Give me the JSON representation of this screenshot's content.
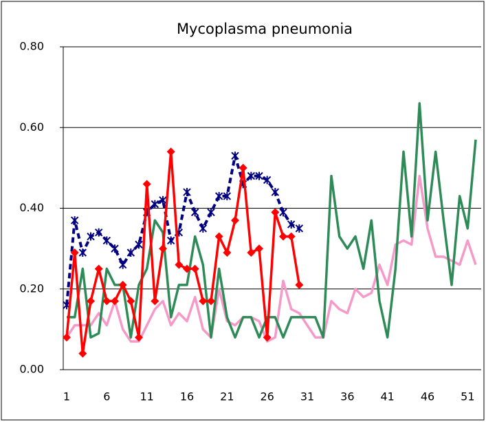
{
  "chart_data": {
    "type": "line",
    "title": "Mycoplasma pneumonia",
    "categories": [
      "1",
      null,
      null,
      null,
      null,
      "6",
      null,
      null,
      null,
      null,
      "11",
      null,
      null,
      null,
      null,
      "16",
      null,
      null,
      null,
      null,
      "21",
      null,
      null,
      null,
      null,
      "26",
      null,
      null,
      null,
      null,
      "31",
      null,
      null,
      null,
      null,
      "36",
      null,
      null,
      null,
      null,
      "41",
      null,
      null,
      null,
      null,
      "46",
      null,
      null,
      null,
      null,
      "51",
      null
    ],
    "series": [
      {
        "color": "#000080",
        "dashed": true,
        "marker": "asterisk",
        "values": [
          0.16,
          0.37,
          0.29,
          0.33,
          0.34,
          0.32,
          0.3,
          0.26,
          0.29,
          0.31,
          0.39,
          0.41,
          0.42,
          0.32,
          0.34,
          0.44,
          0.39,
          0.35,
          0.39,
          0.43,
          0.43,
          0.53,
          0.46,
          0.48,
          0.48,
          0.47,
          0.44,
          0.39,
          0.36,
          0.35,
          null,
          null,
          null,
          null,
          null,
          null,
          null,
          null,
          null,
          null,
          null,
          null,
          null,
          null,
          null,
          null,
          null,
          null,
          null,
          null,
          null,
          null
        ]
      },
      {
        "color": "#ff0000",
        "marker": "diamond",
        "values": [
          0.08,
          0.29,
          0.04,
          0.17,
          0.25,
          0.17,
          0.17,
          0.21,
          0.17,
          0.08,
          0.46,
          0.17,
          0.3,
          0.54,
          0.26,
          0.25,
          0.25,
          0.17,
          0.17,
          0.33,
          0.29,
          0.37,
          0.5,
          0.29,
          0.3,
          0.08,
          0.39,
          0.33,
          0.33,
          0.21,
          null,
          null,
          null,
          null,
          null,
          null,
          null,
          null,
          null,
          null,
          null,
          null,
          null,
          null,
          null,
          null,
          null,
          null,
          null,
          null,
          null,
          null
        ]
      },
      {
        "color": "#2e8b57",
        "values": [
          0.13,
          0.13,
          0.25,
          0.08,
          0.09,
          0.25,
          0.21,
          0.21,
          0.08,
          0.21,
          0.25,
          0.37,
          0.34,
          0.13,
          0.21,
          0.21,
          0.33,
          0.26,
          0.08,
          0.25,
          0.13,
          0.08,
          0.13,
          0.13,
          0.08,
          0.13,
          0.13,
          0.08,
          0.13,
          0.13,
          0.13,
          0.13,
          0.08,
          0.48,
          0.33,
          0.3,
          0.33,
          0.25,
          0.37,
          0.17,
          0.08,
          0.25,
          0.54,
          0.33,
          0.66,
          0.37,
          0.54,
          0.37,
          0.21,
          0.43,
          0.35,
          0.57
        ]
      },
      {
        "color": "#f59ac8",
        "values": [
          0.08,
          0.11,
          0.11,
          0.11,
          0.14,
          0.11,
          0.17,
          0.1,
          0.07,
          0.07,
          0.11,
          0.15,
          0.17,
          0.11,
          0.14,
          0.12,
          0.18,
          0.1,
          0.08,
          0.2,
          0.12,
          0.11,
          0.13,
          0.13,
          0.12,
          0.07,
          0.08,
          0.22,
          0.15,
          0.14,
          0.11,
          0.08,
          0.08,
          0.17,
          0.15,
          0.14,
          0.2,
          0.18,
          0.19,
          0.26,
          0.21,
          0.31,
          0.32,
          0.31,
          0.48,
          0.35,
          0.28,
          0.28,
          0.27,
          0.26,
          0.32,
          0.26
        ]
      }
    ],
    "ylim": [
      0,
      0.8
    ],
    "yticks": [
      {
        "value": 0,
        "label": "0.00"
      },
      {
        "value": 0.2,
        "label": "0.20"
      },
      {
        "value": 0.4,
        "label": "0.40"
      },
      {
        "value": 0.6,
        "label": "0.60"
      },
      {
        "value": 0.8,
        "label": "0.80"
      }
    ],
    "grid": true
  }
}
